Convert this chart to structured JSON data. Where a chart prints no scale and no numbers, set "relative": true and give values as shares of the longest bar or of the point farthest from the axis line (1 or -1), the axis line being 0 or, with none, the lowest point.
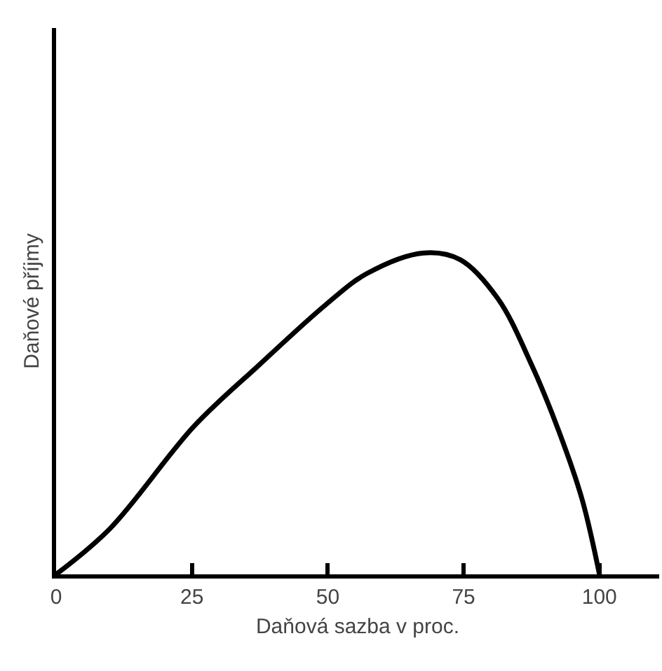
{
  "chart_data": {
    "type": "line",
    "relative": true,
    "xlabel": "Daňová sazba v proc.",
    "ylabel": "Daňové příjmy",
    "x": [
      0,
      9.9,
      25.4,
      37.4,
      49.7,
      57.2,
      67.6,
      74.4,
      81.3,
      87.3,
      92.5,
      96.8,
      100
    ],
    "series": [
      {
        "color": "#000000",
        "values": [
          0,
          0.142,
          0.461,
          0.652,
          0.84,
          0.936,
          1,
          0.979,
          0.858,
          0.66,
          0.447,
          0.234,
          0
        ]
      }
    ],
    "xlim": [
      0,
      111
    ],
    "xticks": [
      0,
      25,
      50,
      75,
      100
    ],
    "grid": false,
    "marker": "none",
    "line_style": "solid"
  }
}
